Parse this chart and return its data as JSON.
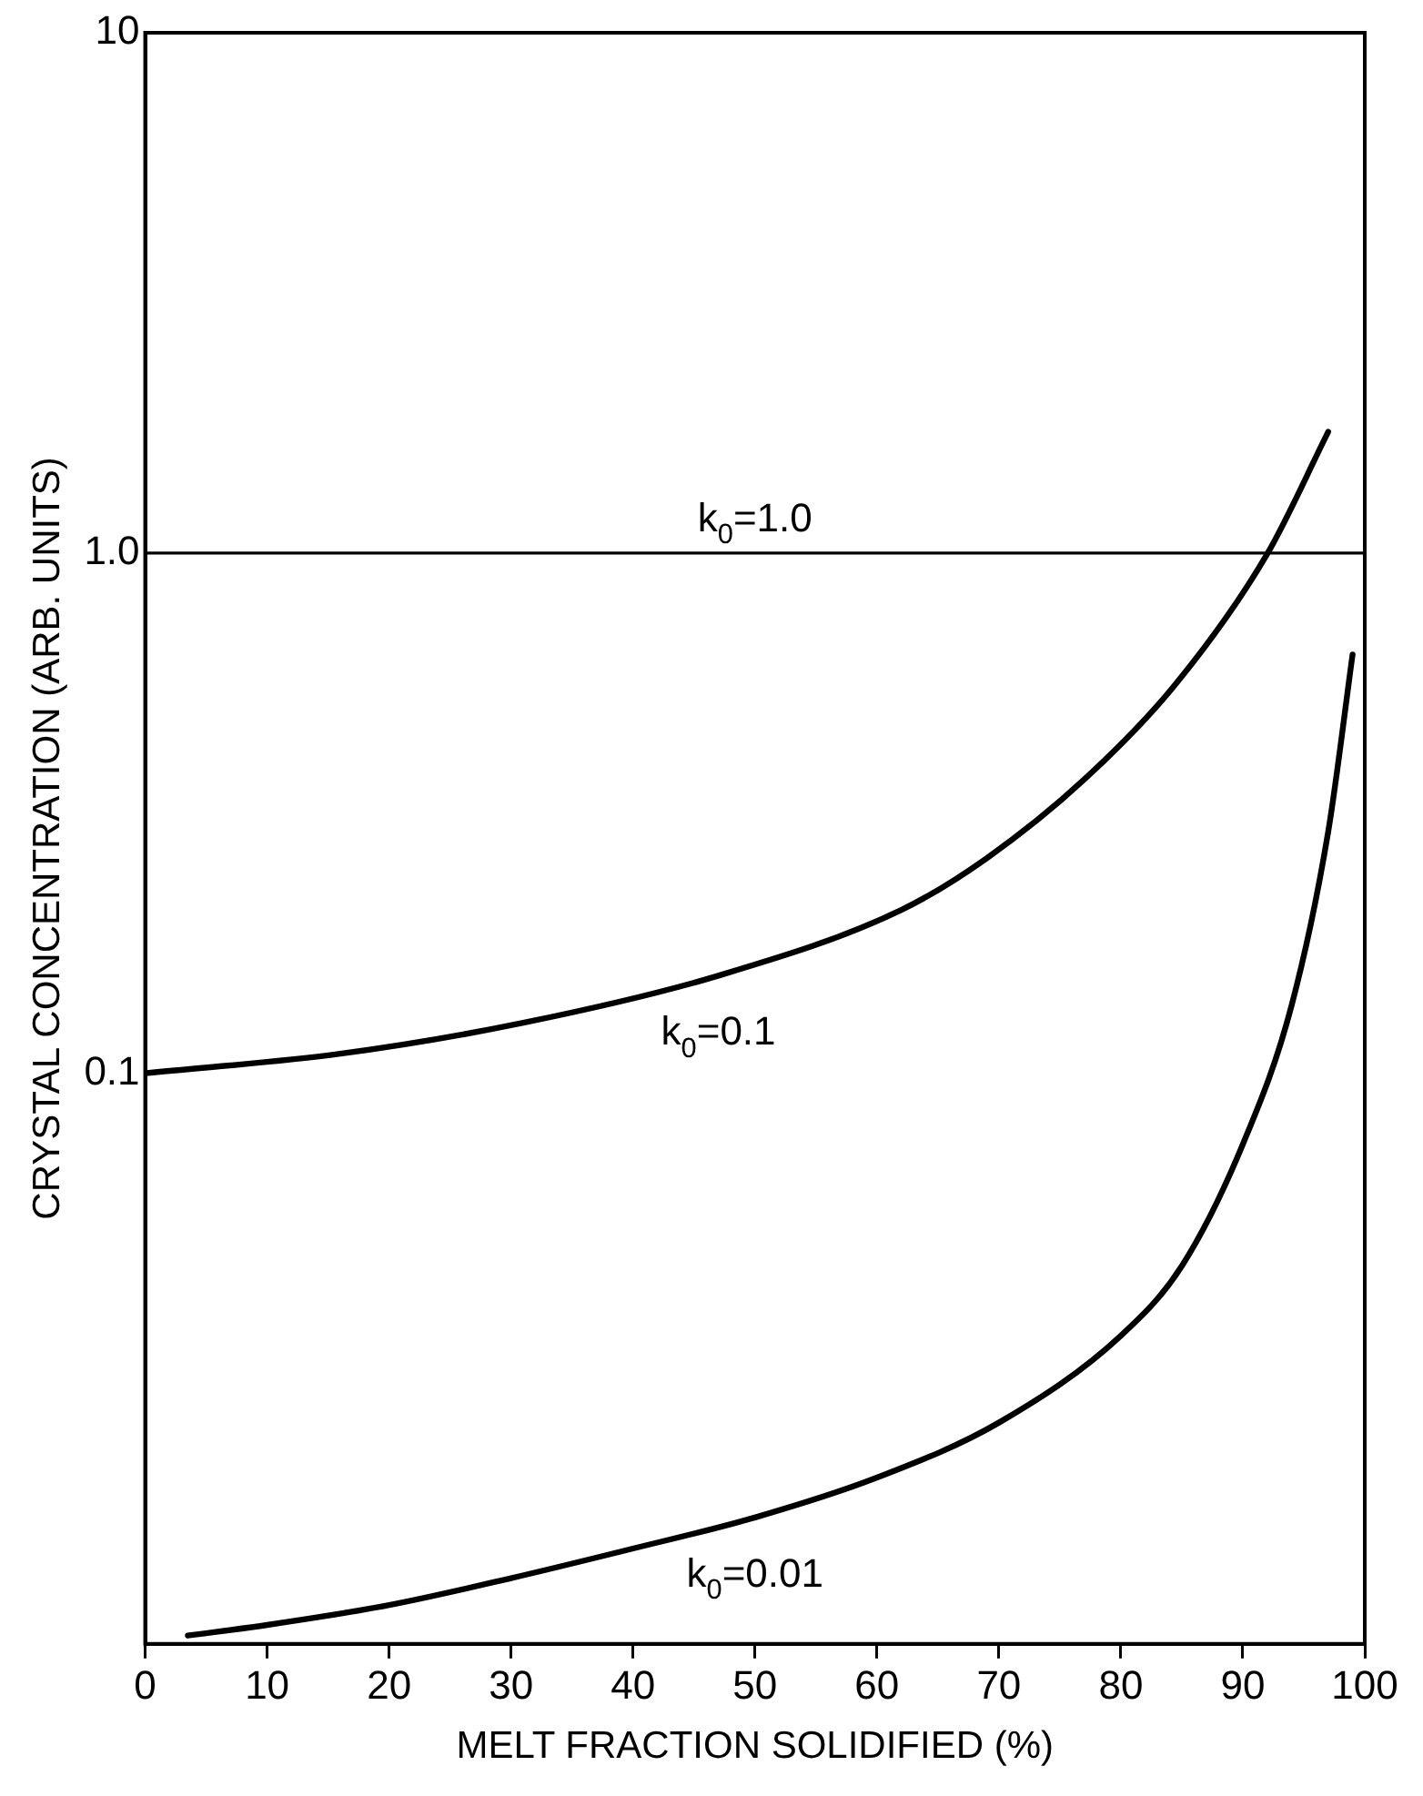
{
  "chart_data": {
    "type": "line",
    "xlabel": "MELT FRACTION SOLIDIFIED (%)",
    "ylabel": "CRYSTAL CONCENTRATION (ARB. UNITS)",
    "xlim": [
      0,
      100
    ],
    "xticks": [
      0,
      10,
      20,
      30,
      40,
      50,
      60,
      70,
      80,
      90,
      100
    ],
    "ylim": [
      0.008,
      10
    ],
    "yticks": [
      0.1,
      {
        "value": 1,
        "label": "1.0"
      },
      10
    ],
    "log": true,
    "grid": false,
    "legend": false,
    "marker": "none",
    "line_style": "solid",
    "series": [
      {
        "name": "k$_{0}$=1.0",
        "color": "#000000",
        "x": [
          0,
          100
        ],
        "values": [
          1,
          1
        ]
      },
      {
        "name": "k$_{0}$=0.1",
        "color": "#000000",
        "x": [
          0,
          16,
          31,
          47,
          62,
          69,
          77,
          84.5,
          92,
          97
        ],
        "values": [
          0.1,
          0.109,
          0.125,
          0.154,
          0.206,
          0.259,
          0.367,
          0.56,
          0.996,
          1.71
        ]
      },
      {
        "name": "k$_{0}$=0.01",
        "color": "#000000",
        "x": [
          3.5,
          10,
          20,
          30,
          40,
          50,
          60,
          70,
          80,
          85,
          90,
          94,
          97,
          99
        ],
        "values": [
          0.0083,
          0.0087,
          0.0095,
          0.0107,
          0.0122,
          0.014,
          0.0167,
          0.0213,
          0.0313,
          0.0426,
          0.073,
          0.135,
          0.291,
          0.638
        ]
      }
    ]
  }
}
